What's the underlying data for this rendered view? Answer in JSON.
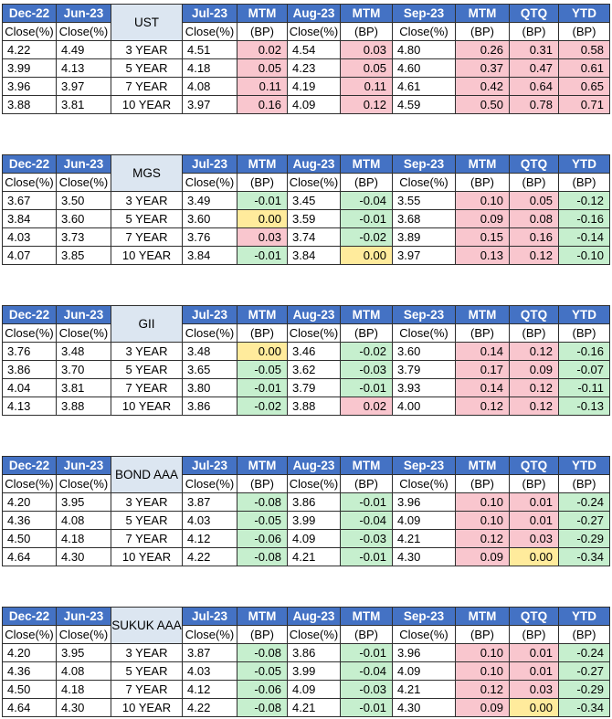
{
  "headers": {
    "dec22": "Dec-22",
    "jun23": "Jun-23",
    "jul23": "Jul-23",
    "mtm": "MTM",
    "aug23": "Aug-23",
    "sep23": "Sep-23",
    "qtq": "QTQ",
    "ytd": "YTD",
    "close": "Close(%)",
    "bp": "(BP)"
  },
  "colors": {
    "header_bg": "#4472c4",
    "instrument_bg": "#dce6f1",
    "increase_bg": "#f9c6ce",
    "decrease_bg": "#c6efce",
    "unchanged_bg": "#ffeb9c"
  },
  "tables": [
    {
      "instrument": "UST",
      "rows": [
        {
          "dec22": "4.22",
          "jun23": "4.49",
          "tenor": "3 YEAR",
          "jul23": "4.51",
          "mtm_jul": "0.02",
          "aug23": "4.54",
          "mtm_aug": "0.03",
          "sep23": "4.80",
          "mtm_sep": "0.26",
          "qtq": "0.31",
          "ytd": "0.58"
        },
        {
          "dec22": "3.99",
          "jun23": "4.13",
          "tenor": "5 YEAR",
          "jul23": "4.18",
          "mtm_jul": "0.05",
          "aug23": "4.23",
          "mtm_aug": "0.05",
          "sep23": "4.60",
          "mtm_sep": "0.37",
          "qtq": "0.47",
          "ytd": "0.61"
        },
        {
          "dec22": "3.96",
          "jun23": "3.97",
          "tenor": "7 YEAR",
          "jul23": "4.08",
          "mtm_jul": "0.11",
          "aug23": "4.19",
          "mtm_aug": "0.11",
          "sep23": "4.61",
          "mtm_sep": "0.42",
          "qtq": "0.64",
          "ytd": "0.65"
        },
        {
          "dec22": "3.88",
          "jun23": "3.81",
          "tenor": "10 YEAR",
          "jul23": "3.97",
          "mtm_jul": "0.16",
          "aug23": "4.09",
          "mtm_aug": "0.12",
          "sep23": "4.59",
          "mtm_sep": "0.50",
          "qtq": "0.78",
          "ytd": "0.71"
        }
      ]
    },
    {
      "instrument": "MGS",
      "rows": [
        {
          "dec22": "3.67",
          "jun23": "3.50",
          "tenor": "3 YEAR",
          "jul23": "3.49",
          "mtm_jul": "-0.01",
          "aug23": "3.45",
          "mtm_aug": "-0.04",
          "sep23": "3.55",
          "mtm_sep": "0.10",
          "qtq": "0.05",
          "ytd": "-0.12"
        },
        {
          "dec22": "3.84",
          "jun23": "3.60",
          "tenor": "5 YEAR",
          "jul23": "3.60",
          "mtm_jul": "0.00",
          "aug23": "3.59",
          "mtm_aug": "-0.01",
          "sep23": "3.68",
          "mtm_sep": "0.09",
          "qtq": "0.08",
          "ytd": "-0.16"
        },
        {
          "dec22": "4.03",
          "jun23": "3.73",
          "tenor": "7 YEAR",
          "jul23": "3.76",
          "mtm_jul": "0.03",
          "aug23": "3.74",
          "mtm_aug": "-0.02",
          "sep23": "3.89",
          "mtm_sep": "0.15",
          "qtq": "0.16",
          "ytd": "-0.14"
        },
        {
          "dec22": "4.07",
          "jun23": "3.85",
          "tenor": "10 YEAR",
          "jul23": "3.84",
          "mtm_jul": "-0.01",
          "aug23": "3.84",
          "mtm_aug": "0.00",
          "sep23": "3.97",
          "mtm_sep": "0.13",
          "qtq": "0.12",
          "ytd": "-0.10"
        }
      ]
    },
    {
      "instrument": "GII",
      "rows": [
        {
          "dec22": "3.76",
          "jun23": "3.48",
          "tenor": "3 YEAR",
          "jul23": "3.48",
          "mtm_jul": "0.00",
          "aug23": "3.46",
          "mtm_aug": "-0.02",
          "sep23": "3.60",
          "mtm_sep": "0.14",
          "qtq": "0.12",
          "ytd": "-0.16"
        },
        {
          "dec22": "3.86",
          "jun23": "3.70",
          "tenor": "5 YEAR",
          "jul23": "3.65",
          "mtm_jul": "-0.05",
          "aug23": "3.62",
          "mtm_aug": "-0.03",
          "sep23": "3.79",
          "mtm_sep": "0.17",
          "qtq": "0.09",
          "ytd": "-0.07"
        },
        {
          "dec22": "4.04",
          "jun23": "3.81",
          "tenor": "7 YEAR",
          "jul23": "3.80",
          "mtm_jul": "-0.01",
          "aug23": "3.79",
          "mtm_aug": "-0.01",
          "sep23": "3.93",
          "mtm_sep": "0.14",
          "qtq": "0.12",
          "ytd": "-0.11"
        },
        {
          "dec22": "4.13",
          "jun23": "3.88",
          "tenor": "10 YEAR",
          "jul23": "3.86",
          "mtm_jul": "-0.02",
          "aug23": "3.88",
          "mtm_aug": "0.02",
          "sep23": "4.00",
          "mtm_sep": "0.12",
          "qtq": "0.12",
          "ytd": "-0.13"
        }
      ]
    },
    {
      "instrument": "BOND AAA",
      "rows": [
        {
          "dec22": "4.20",
          "jun23": "3.95",
          "tenor": "3 YEAR",
          "jul23": "3.87",
          "mtm_jul": "-0.08",
          "aug23": "3.86",
          "mtm_aug": "-0.01",
          "sep23": "3.96",
          "mtm_sep": "0.10",
          "qtq": "0.01",
          "ytd": "-0.24"
        },
        {
          "dec22": "4.36",
          "jun23": "4.08",
          "tenor": "5 YEAR",
          "jul23": "4.03",
          "mtm_jul": "-0.05",
          "aug23": "3.99",
          "mtm_aug": "-0.04",
          "sep23": "4.09",
          "mtm_sep": "0.10",
          "qtq": "0.01",
          "ytd": "-0.27"
        },
        {
          "dec22": "4.50",
          "jun23": "4.18",
          "tenor": "7 YEAR",
          "jul23": "4.12",
          "mtm_jul": "-0.06",
          "aug23": "4.09",
          "mtm_aug": "-0.03",
          "sep23": "4.21",
          "mtm_sep": "0.12",
          "qtq": "0.03",
          "ytd": "-0.29"
        },
        {
          "dec22": "4.64",
          "jun23": "4.30",
          "tenor": "10 YEAR",
          "jul23": "4.22",
          "mtm_jul": "-0.08",
          "aug23": "4.21",
          "mtm_aug": "-0.01",
          "sep23": "4.30",
          "mtm_sep": "0.09",
          "qtq": "0.00",
          "ytd": "-0.34"
        }
      ]
    },
    {
      "instrument": "SUKUK AAA",
      "rows": [
        {
          "dec22": "4.20",
          "jun23": "3.95",
          "tenor": "3 YEAR",
          "jul23": "3.87",
          "mtm_jul": "-0.08",
          "aug23": "3.86",
          "mtm_aug": "-0.01",
          "sep23": "3.96",
          "mtm_sep": "0.10",
          "qtq": "0.01",
          "ytd": "-0.24"
        },
        {
          "dec22": "4.36",
          "jun23": "4.08",
          "tenor": "5 YEAR",
          "jul23": "4.03",
          "mtm_jul": "-0.05",
          "aug23": "3.99",
          "mtm_aug": "-0.04",
          "sep23": "4.09",
          "mtm_sep": "0.10",
          "qtq": "0.01",
          "ytd": "-0.27"
        },
        {
          "dec22": "4.50",
          "jun23": "4.18",
          "tenor": "7 YEAR",
          "jul23": "4.12",
          "mtm_jul": "-0.06",
          "aug23": "4.09",
          "mtm_aug": "-0.03",
          "sep23": "4.21",
          "mtm_sep": "0.12",
          "qtq": "0.03",
          "ytd": "-0.29"
        },
        {
          "dec22": "4.64",
          "jun23": "4.30",
          "tenor": "10 YEAR",
          "jul23": "4.22",
          "mtm_jul": "-0.08",
          "aug23": "4.21",
          "mtm_aug": "-0.01",
          "sep23": "4.30",
          "mtm_sep": "0.09",
          "qtq": "0.00",
          "ytd": "-0.34"
        }
      ]
    }
  ]
}
